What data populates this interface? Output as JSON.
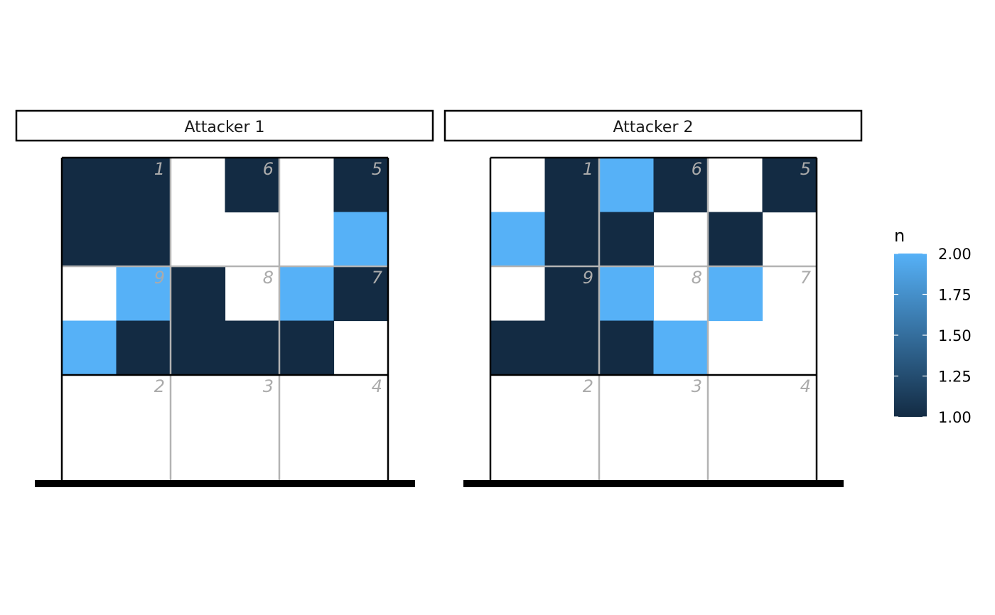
{
  "chart_data": {
    "type": "heatmap",
    "colors": {
      "low": "#132B43",
      "high": "#56B1F7",
      "empty": "#FFFFFF"
    },
    "zone_numbers": {
      "top": [
        "1",
        "6",
        "5"
      ],
      "middle": [
        "9",
        "8",
        "7"
      ],
      "bottom": [
        "2",
        "3",
        "4"
      ]
    },
    "legend": {
      "title": "n",
      "tick_labels": [
        "2.00",
        "1.75",
        "1.50",
        "1.25",
        "1.00"
      ],
      "tick_values": [
        2,
        1.75,
        1.5,
        1.25,
        1
      ],
      "range": [
        1,
        2
      ]
    },
    "panels": [
      {
        "title": "Attacker 1",
        "grid": [
          [
            1,
            1,
            null,
            1,
            null,
            1
          ],
          [
            1,
            1,
            null,
            null,
            null,
            2
          ],
          [
            null,
            2,
            1,
            null,
            2,
            1
          ],
          [
            2,
            1,
            1,
            1,
            1,
            null
          ],
          [
            null,
            null,
            null,
            null,
            null,
            null
          ],
          [
            null,
            null,
            null,
            null,
            null,
            null
          ]
        ]
      },
      {
        "title": "Attacker 2",
        "grid": [
          [
            null,
            1,
            2,
            1,
            null,
            1
          ],
          [
            2,
            1,
            1,
            null,
            1,
            null
          ],
          [
            null,
            1,
            2,
            null,
            2,
            null
          ],
          [
            1,
            1,
            1,
            2,
            null,
            null
          ],
          [
            null,
            null,
            null,
            null,
            null,
            null
          ],
          [
            null,
            null,
            null,
            null,
            null,
            null
          ]
        ]
      }
    ]
  }
}
